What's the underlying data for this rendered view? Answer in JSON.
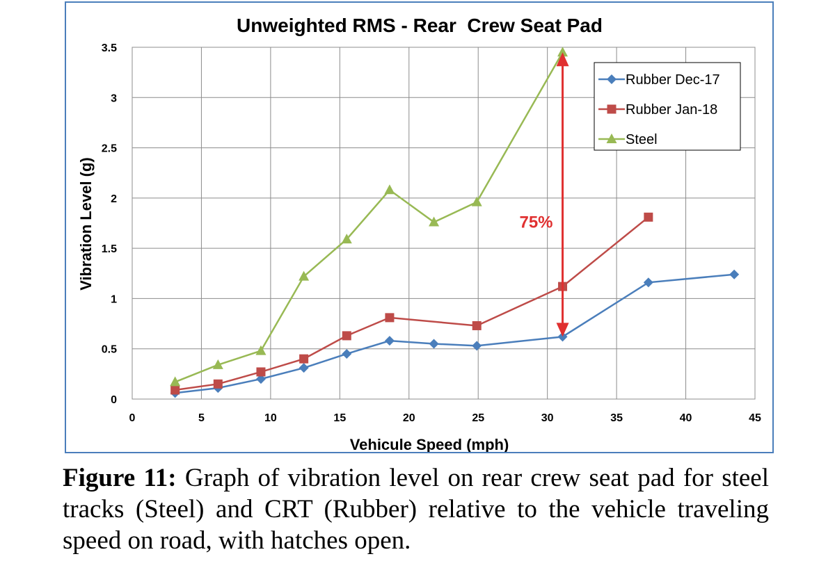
{
  "chart_data": {
    "type": "line",
    "title": "Unweighted RMS - Rear  Crew Seat Pad",
    "xlabel": "Vehicule Speed (mph)",
    "ylabel": "Vibration Level (g)",
    "xlim": [
      0,
      45
    ],
    "ylim": [
      0,
      3.5
    ],
    "x_ticks": [
      "0",
      "5",
      "10",
      "15",
      "20",
      "25",
      "30",
      "35",
      "40",
      "45"
    ],
    "y_ticks": [
      "0",
      "0.5",
      "1",
      "1.5",
      "2",
      "2.5",
      "3",
      "3.5"
    ],
    "grid": true,
    "legend_position": "top-right",
    "series": [
      {
        "name": "Rubber Dec-17",
        "color": "#4a7ebb",
        "marker": "diamond",
        "x": [
          3.1,
          6.2,
          9.3,
          12.4,
          15.5,
          18.6,
          21.8,
          24.9,
          31.1,
          37.3,
          43.5
        ],
        "y": [
          0.06,
          0.11,
          0.2,
          0.31,
          0.45,
          0.58,
          0.55,
          0.53,
          0.62,
          1.16,
          1.24
        ]
      },
      {
        "name": "Rubber Jan-18",
        "color": "#be4b48",
        "marker": "square",
        "x": [
          3.1,
          6.2,
          9.3,
          12.4,
          15.5,
          18.6,
          24.9,
          31.1,
          37.3
        ],
        "y": [
          0.09,
          0.15,
          0.27,
          0.4,
          0.63,
          0.81,
          0.73,
          1.12,
          1.81
        ]
      },
      {
        "name": "Steel",
        "color": "#98b954",
        "marker": "triangle",
        "x": [
          3.1,
          6.2,
          9.3,
          12.4,
          15.5,
          18.6,
          21.8,
          24.9,
          31.1
        ],
        "y": [
          0.17,
          0.34,
          0.48,
          1.22,
          1.59,
          2.08,
          1.76,
          1.96,
          3.45
        ]
      }
    ],
    "annotation": {
      "text": "75%",
      "color": "#e03030",
      "arrow_x": 31.1,
      "arrow_y_from": 0.62,
      "arrow_y_to": 3.45
    }
  },
  "caption": {
    "label": "Figure 11:",
    "text": " Graph of vibration level on rear crew seat pad for steel tracks (Steel) and CRT (Rubber) relative to the vehicle traveling speed on road, with hatches open."
  }
}
